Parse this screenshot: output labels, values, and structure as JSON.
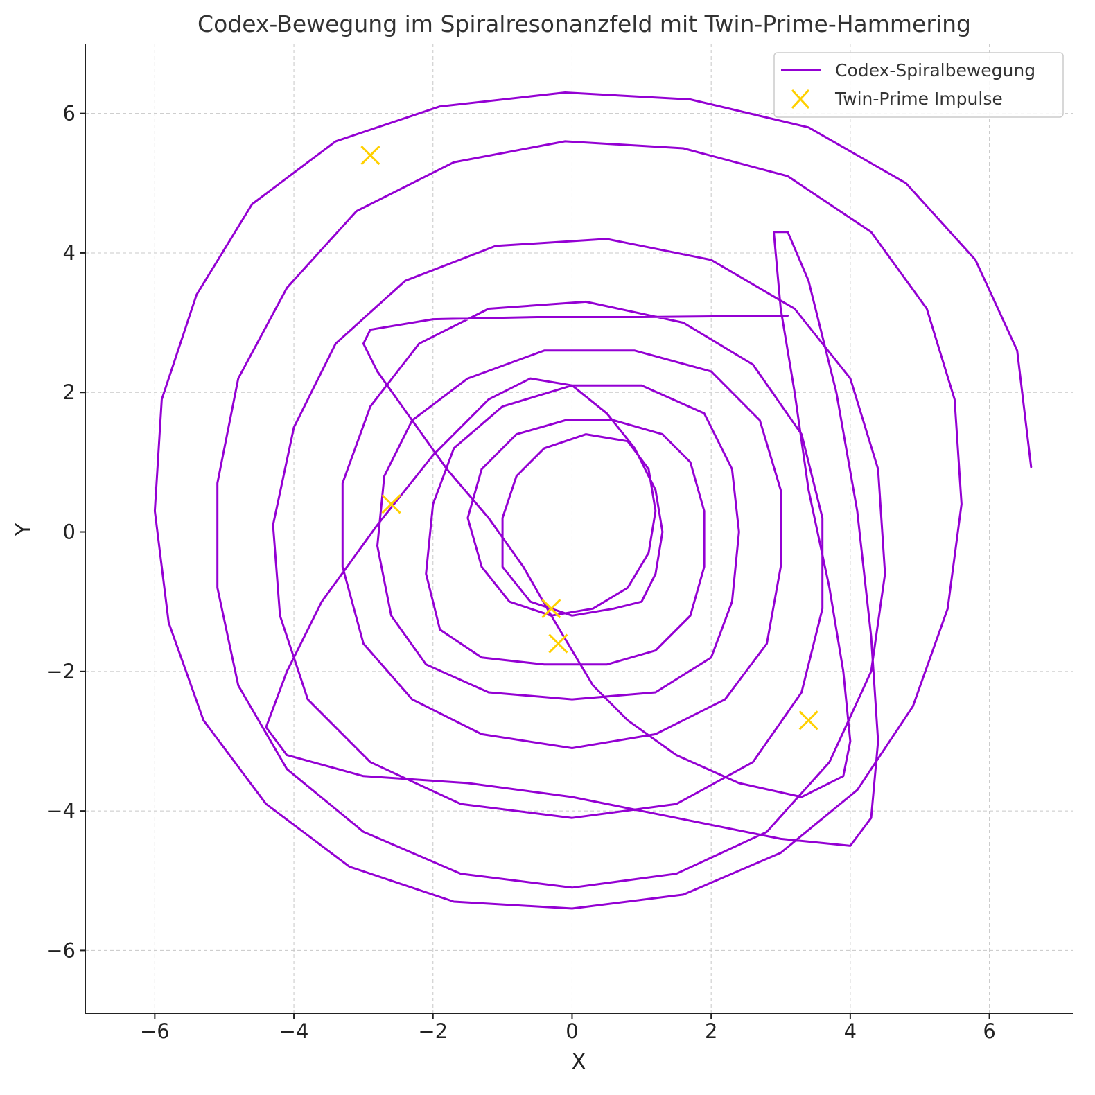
{
  "chart_data": {
    "type": "line",
    "title": "Codex-Bewegung im Spiralresonanzfeld mit Twin-Prime-Hammering",
    "xlabel": "X",
    "ylabel": "Y",
    "xlim": [
      -7.0,
      7.2
    ],
    "ylim": [
      -6.9,
      7.0
    ],
    "xticks": [
      -6,
      -4,
      -2,
      0,
      2,
      4,
      6
    ],
    "yticks": [
      -6,
      -4,
      -2,
      0,
      2,
      4,
      6
    ],
    "xtick_labels": [
      "−6",
      "−4",
      "−2",
      "0",
      "2",
      "4",
      "6"
    ],
    "ytick_labels": [
      "−6",
      "−4",
      "−2",
      "0",
      "2",
      "4",
      "6"
    ],
    "grid": true,
    "legend_position": "top-right",
    "series": [
      {
        "name": "Codex-Spiralbewegung",
        "kind": "line",
        "color": "#9400D3",
        "points": [
          [
            3.1,
            3.1
          ],
          [
            1.0,
            3.08
          ],
          [
            -0.5,
            3.08
          ],
          [
            -2.0,
            3.05
          ],
          [
            -2.9,
            2.9
          ],
          [
            -3.0,
            2.7
          ],
          [
            -2.8,
            2.3
          ],
          [
            -2.3,
            1.6
          ],
          [
            -1.8,
            0.9
          ],
          [
            -1.2,
            0.2
          ],
          [
            -0.7,
            -0.5
          ],
          [
            -0.3,
            -1.2
          ],
          [
            0.0,
            -1.7
          ],
          [
            0.3,
            -2.2
          ],
          [
            0.8,
            -2.7
          ],
          [
            1.5,
            -3.2
          ],
          [
            2.4,
            -3.6
          ],
          [
            3.3,
            -3.8
          ],
          [
            3.9,
            -3.5
          ],
          [
            4.0,
            -3.0
          ],
          [
            3.9,
            -2.0
          ],
          [
            3.7,
            -0.8
          ],
          [
            3.4,
            0.6
          ],
          [
            3.2,
            2.0
          ],
          [
            3.0,
            3.2
          ],
          [
            2.9,
            4.3
          ],
          [
            3.1,
            4.3
          ],
          [
            3.4,
            3.6
          ],
          [
            3.8,
            2.0
          ],
          [
            4.1,
            0.3
          ],
          [
            4.3,
            -1.5
          ],
          [
            4.4,
            -3.0
          ],
          [
            4.3,
            -4.1
          ],
          [
            4.0,
            -4.5
          ],
          [
            3.0,
            -4.4
          ],
          [
            1.5,
            -4.1
          ],
          [
            0.0,
            -3.8
          ],
          [
            -1.5,
            -3.6
          ],
          [
            -3.0,
            -3.5
          ],
          [
            -4.1,
            -3.2
          ],
          [
            -4.4,
            -2.8
          ],
          [
            -4.1,
            -2.0
          ],
          [
            -3.6,
            -1.0
          ],
          [
            -2.8,
            0.1
          ],
          [
            -2.0,
            1.1
          ],
          [
            -1.2,
            1.9
          ],
          [
            -0.6,
            2.2
          ],
          [
            0.0,
            2.1
          ],
          [
            0.5,
            1.7
          ],
          [
            0.9,
            1.2
          ],
          [
            1.2,
            0.6
          ],
          [
            1.3,
            0.0
          ],
          [
            1.2,
            -0.6
          ],
          [
            1.0,
            -1.0
          ],
          [
            0.6,
            -1.1
          ],
          [
            0.0,
            -1.2
          ],
          [
            -0.6,
            -1.0
          ],
          [
            -1.0,
            -0.5
          ],
          [
            -1.0,
            0.2
          ],
          [
            -0.8,
            0.8
          ],
          [
            -0.4,
            1.2
          ],
          [
            0.2,
            1.4
          ],
          [
            0.8,
            1.3
          ],
          [
            1.1,
            0.9
          ],
          [
            1.2,
            0.3
          ],
          [
            1.1,
            -0.3
          ],
          [
            0.8,
            -0.8
          ],
          [
            0.3,
            -1.1
          ],
          [
            -0.3,
            -1.2
          ],
          [
            -0.9,
            -1.0
          ],
          [
            -1.3,
            -0.5
          ],
          [
            -1.5,
            0.2
          ],
          [
            -1.3,
            0.9
          ],
          [
            -0.8,
            1.4
          ],
          [
            -0.1,
            1.6
          ],
          [
            0.6,
            1.6
          ],
          [
            1.3,
            1.4
          ],
          [
            1.7,
            1.0
          ],
          [
            1.9,
            0.3
          ],
          [
            1.9,
            -0.5
          ],
          [
            1.7,
            -1.2
          ],
          [
            1.2,
            -1.7
          ],
          [
            0.5,
            -1.9
          ],
          [
            -0.4,
            -1.9
          ],
          [
            -1.3,
            -1.8
          ],
          [
            -1.9,
            -1.4
          ],
          [
            -2.1,
            -0.6
          ],
          [
            -2.0,
            0.4
          ],
          [
            -1.7,
            1.2
          ],
          [
            -1.0,
            1.8
          ],
          [
            0.0,
            2.1
          ],
          [
            1.0,
            2.1
          ],
          [
            1.9,
            1.7
          ],
          [
            2.3,
            0.9
          ],
          [
            2.4,
            0.0
          ],
          [
            2.3,
            -1.0
          ],
          [
            2.0,
            -1.8
          ],
          [
            1.2,
            -2.3
          ],
          [
            0.0,
            -2.4
          ],
          [
            -1.2,
            -2.3
          ],
          [
            -2.1,
            -1.9
          ],
          [
            -2.6,
            -1.2
          ],
          [
            -2.8,
            -0.2
          ],
          [
            -2.7,
            0.8
          ],
          [
            -2.3,
            1.6
          ],
          [
            -1.5,
            2.2
          ],
          [
            -0.4,
            2.6
          ],
          [
            0.9,
            2.6
          ],
          [
            2.0,
            2.3
          ],
          [
            2.7,
            1.6
          ],
          [
            3.0,
            0.6
          ],
          [
            3.0,
            -0.5
          ],
          [
            2.8,
            -1.6
          ],
          [
            2.2,
            -2.4
          ],
          [
            1.2,
            -2.9
          ],
          [
            0.0,
            -3.1
          ],
          [
            -1.3,
            -2.9
          ],
          [
            -2.3,
            -2.4
          ],
          [
            -3.0,
            -1.6
          ],
          [
            -3.3,
            -0.5
          ],
          [
            -3.3,
            0.7
          ],
          [
            -2.9,
            1.8
          ],
          [
            -2.2,
            2.7
          ],
          [
            -1.2,
            3.2
          ],
          [
            0.2,
            3.3
          ],
          [
            1.6,
            3.0
          ],
          [
            2.6,
            2.4
          ],
          [
            3.3,
            1.4
          ],
          [
            3.6,
            0.2
          ],
          [
            3.6,
            -1.1
          ],
          [
            3.3,
            -2.3
          ],
          [
            2.6,
            -3.3
          ],
          [
            1.5,
            -3.9
          ],
          [
            0.0,
            -4.1
          ],
          [
            -1.6,
            -3.9
          ],
          [
            -2.9,
            -3.3
          ],
          [
            -3.8,
            -2.4
          ],
          [
            -4.2,
            -1.2
          ],
          [
            -4.3,
            0.1
          ],
          [
            -4.0,
            1.5
          ],
          [
            -3.4,
            2.7
          ],
          [
            -2.4,
            3.6
          ],
          [
            -1.1,
            4.1
          ],
          [
            0.5,
            4.2
          ],
          [
            2.0,
            3.9
          ],
          [
            3.2,
            3.2
          ],
          [
            4.0,
            2.2
          ],
          [
            4.4,
            0.9
          ],
          [
            4.5,
            -0.6
          ],
          [
            4.3,
            -2.0
          ],
          [
            3.7,
            -3.3
          ],
          [
            2.8,
            -4.3
          ],
          [
            1.5,
            -4.9
          ],
          [
            0.0,
            -5.1
          ],
          [
            -1.6,
            -4.9
          ],
          [
            -3.0,
            -4.3
          ],
          [
            -4.1,
            -3.4
          ],
          [
            -4.8,
            -2.2
          ],
          [
            -5.1,
            -0.8
          ],
          [
            -5.1,
            0.7
          ],
          [
            -4.8,
            2.2
          ],
          [
            -4.1,
            3.5
          ],
          [
            -3.1,
            4.6
          ],
          [
            -1.7,
            5.3
          ],
          [
            -0.1,
            5.6
          ],
          [
            1.6,
            5.5
          ],
          [
            3.1,
            5.1
          ],
          [
            4.3,
            4.3
          ],
          [
            5.1,
            3.2
          ],
          [
            5.5,
            1.9
          ],
          [
            5.6,
            0.4
          ],
          [
            5.4,
            -1.1
          ],
          [
            4.9,
            -2.5
          ],
          [
            4.1,
            -3.7
          ],
          [
            3.0,
            -4.6
          ],
          [
            1.6,
            -5.2
          ],
          [
            0.0,
            -5.4
          ],
          [
            -1.7,
            -5.3
          ],
          [
            -3.2,
            -4.8
          ],
          [
            -4.4,
            -3.9
          ],
          [
            -5.3,
            -2.7
          ],
          [
            -5.8,
            -1.3
          ],
          [
            -6.0,
            0.3
          ],
          [
            -5.9,
            1.9
          ],
          [
            -5.4,
            3.4
          ],
          [
            -4.6,
            4.7
          ],
          [
            -3.4,
            5.6
          ],
          [
            -1.9,
            6.1
          ],
          [
            -0.1,
            6.3
          ],
          [
            1.7,
            6.2
          ],
          [
            3.4,
            5.8
          ],
          [
            4.8,
            5.0
          ],
          [
            5.8,
            3.9
          ],
          [
            6.4,
            2.6
          ],
          [
            6.6,
            0.93
          ]
        ]
      },
      {
        "name": "Twin-Prime Impulse",
        "kind": "scatter",
        "marker": "x",
        "color": "#FFD000",
        "points": [
          [
            -2.9,
            5.4
          ],
          [
            -2.6,
            0.4
          ],
          [
            -0.3,
            -1.1
          ],
          [
            -0.2,
            -1.6
          ],
          [
            3.4,
            -2.7
          ]
        ]
      }
    ]
  }
}
